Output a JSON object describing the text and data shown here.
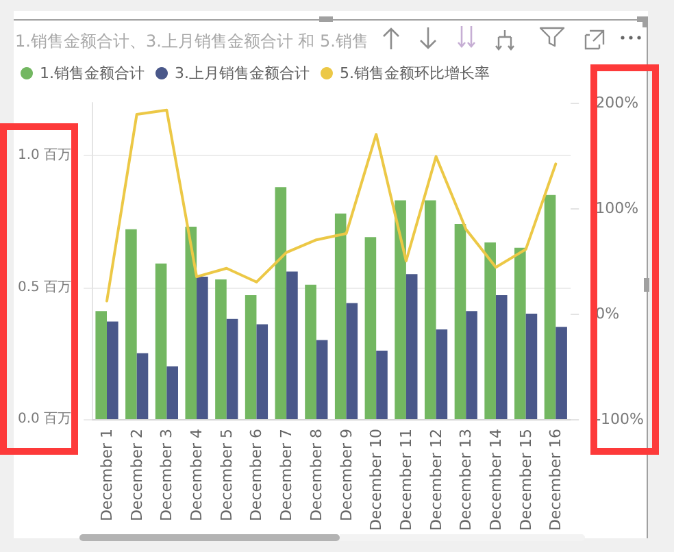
{
  "chart_data": {
    "type": "bar",
    "title": "1.销售金额合计、3.上月销售金额合计 和 5.销售",
    "categories": [
      "December 1",
      "December 2",
      "December 3",
      "December 4",
      "December 5",
      "December 6",
      "December 7",
      "December 8",
      "December 9",
      "December 10",
      "December 11",
      "December 12",
      "December 13",
      "December 14",
      "December 15",
      "December 16"
    ],
    "series": [
      {
        "name": "1.销售金额合计",
        "color": "#73b761",
        "values": [
          0.41,
          0.72,
          0.59,
          0.73,
          0.53,
          0.47,
          0.88,
          0.51,
          0.78,
          0.69,
          0.83,
          0.83,
          0.74,
          0.67,
          0.65,
          0.85
        ]
      },
      {
        "name": "3.上月销售金额合计",
        "color": "#4a588a",
        "values": [
          0.37,
          0.25,
          0.2,
          0.54,
          0.38,
          0.36,
          0.56,
          0.3,
          0.44,
          0.26,
          0.55,
          0.34,
          0.41,
          0.47,
          0.4,
          0.35
        ]
      },
      {
        "name": "5.销售金额环比增长率",
        "type": "line",
        "axis": "y2",
        "color": "#ecc846",
        "values": [
          12,
          189,
          193,
          35,
          43,
          30,
          58,
          70,
          76,
          170,
          50,
          149,
          80,
          44,
          61,
          142
        ]
      }
    ],
    "ylim": [
      0,
      1.2
    ],
    "yticks": [
      {
        "value": 0,
        "label": "0.0 百万"
      },
      {
        "value": 0.5,
        "label": "0.5 百万"
      },
      {
        "value": 1,
        "label": "1.0 百万"
      }
    ],
    "y2lim": [
      -100,
      200
    ],
    "y2ticks": [
      {
        "value": -100,
        "label": "-100%"
      },
      {
        "value": 0,
        "label": "0%"
      },
      {
        "value": 100,
        "label": "100%"
      },
      {
        "value": 200,
        "label": "200%"
      }
    ],
    "grid": "y",
    "legend": "top left",
    "marker": "none",
    "line_style": "solid"
  }
}
